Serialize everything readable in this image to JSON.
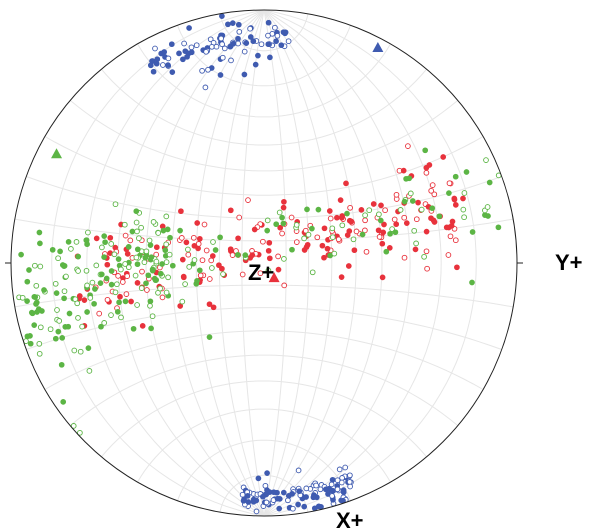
{
  "labels": {
    "z_plus": "Z+",
    "y_plus": "Y+",
    "x_plus": "X+"
  },
  "colors": {
    "red": "#e8323c",
    "green": "#5cb545",
    "blue": "#3f5bb0",
    "grid": "#e6e6e6",
    "outline": "#222222"
  },
  "chart_data": {
    "type": "scatter",
    "projection": "stereographic-net",
    "grid": true,
    "mean_markers": [
      {
        "set": "red",
        "x": 0.04,
        "y": -0.06
      },
      {
        "set": "blue",
        "x": 0.45,
        "y": 0.85
      },
      {
        "set": "green",
        "x": -0.82,
        "y": 0.43
      }
    ],
    "point_sets": [
      {
        "set": "red",
        "band": "tilted-band",
        "count": 230
      },
      {
        "set": "green",
        "band": "tilted-band",
        "count": 260
      },
      {
        "set": "blue",
        "band": "north-cluster",
        "count": 90
      },
      {
        "set": "blue",
        "band": "south-cluster",
        "count": 110
      }
    ]
  }
}
